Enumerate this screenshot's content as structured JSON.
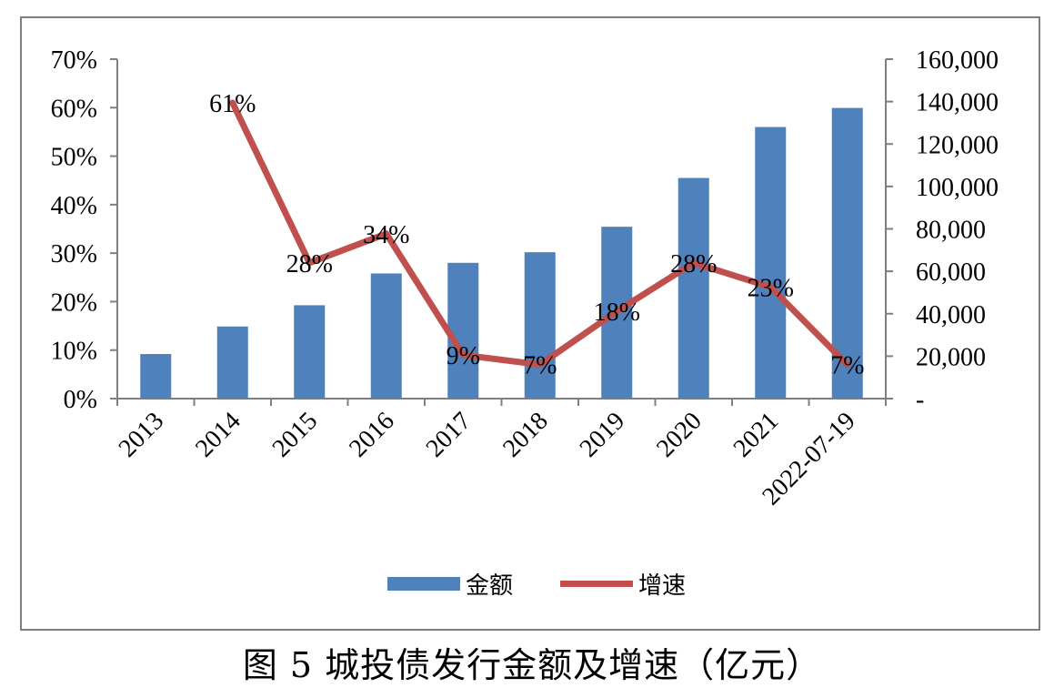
{
  "chart_data": {
    "type": "bar",
    "title": "",
    "categories": [
      "2013",
      "2014",
      "2015",
      "2016",
      "2017",
      "2018",
      "2019",
      "2020",
      "2021",
      "2022-07-19"
    ],
    "series": [
      {
        "name": "金额",
        "type": "bar",
        "axis": "right",
        "color": "#4f81bd",
        "values": [
          21000,
          34000,
          44000,
          59000,
          64000,
          69000,
          81000,
          104000,
          128000,
          137000
        ]
      },
      {
        "name": "增速",
        "type": "line",
        "axis": "left",
        "color": "#c0504d",
        "values": [
          null,
          61,
          28,
          34,
          9,
          7,
          18,
          28,
          23,
          7
        ],
        "labels": [
          "",
          "61%",
          "28%",
          "34%",
          "9%",
          "7%",
          "18%",
          "28%",
          "23%",
          "7%"
        ]
      }
    ],
    "y_left": {
      "min": 0,
      "max": 70,
      "step": 10,
      "tick_labels": [
        "0%",
        "10%",
        "20%",
        "30%",
        "40%",
        "50%",
        "60%",
        "70%"
      ]
    },
    "y_right": {
      "min": 0,
      "max": 160000,
      "step": 20000,
      "tick_labels": [
        "-",
        "20,000",
        "40,000",
        "60,000",
        "80,000",
        "100,000",
        "120,000",
        "140,000",
        "160,000"
      ]
    },
    "grid": false,
    "legend": "bottom",
    "caption": "图 5  城投债发行金额及增速（亿元）"
  }
}
